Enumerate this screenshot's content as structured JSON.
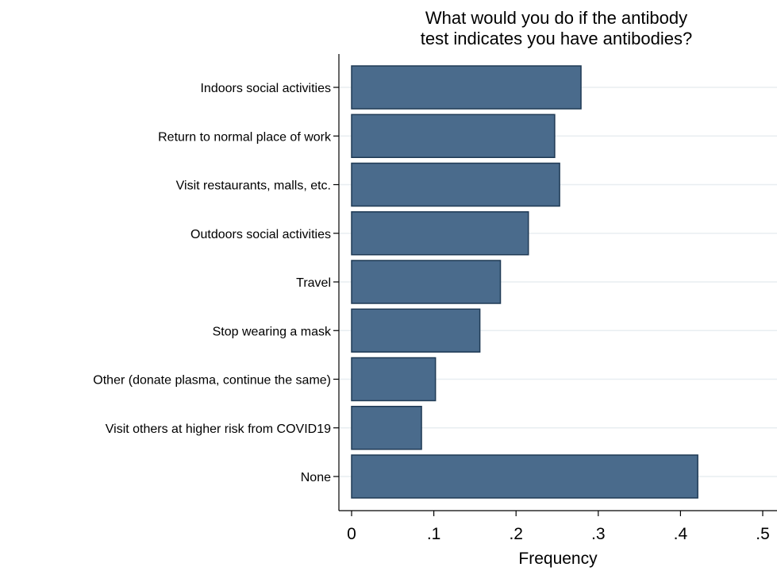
{
  "chart_data": {
    "type": "bar",
    "orientation": "horizontal",
    "title_lines": [
      "What would you do if the antibody",
      "test indicates you have antibodies?"
    ],
    "xlabel": "Frequency",
    "ylabel": "",
    "categories": [
      "Indoors social activities",
      "Return to normal place of work",
      "Visit restaurants, malls, etc.",
      "Outdoors social activities",
      "Travel",
      "Stop wearing a mask",
      "Other (donate plasma, continue the same)",
      "Visit others at higher risk from COVID19",
      "None"
    ],
    "values": [
      0.279,
      0.247,
      0.253,
      0.215,
      0.181,
      0.156,
      0.102,
      0.085,
      0.421
    ],
    "xlim": [
      0,
      0.5
    ],
    "xticks": [
      0,
      0.1,
      0.2,
      0.3,
      0.4,
      0.5
    ],
    "xtick_labels": [
      "0",
      ".1",
      ".2",
      ".3",
      ".4",
      ".5"
    ],
    "grid": true,
    "legend": "none",
    "colors": {
      "bar_fill": "#4a6b8c",
      "bar_stroke": "#1f3a55",
      "grid": "#e8eef1",
      "axis": "#000000"
    }
  }
}
